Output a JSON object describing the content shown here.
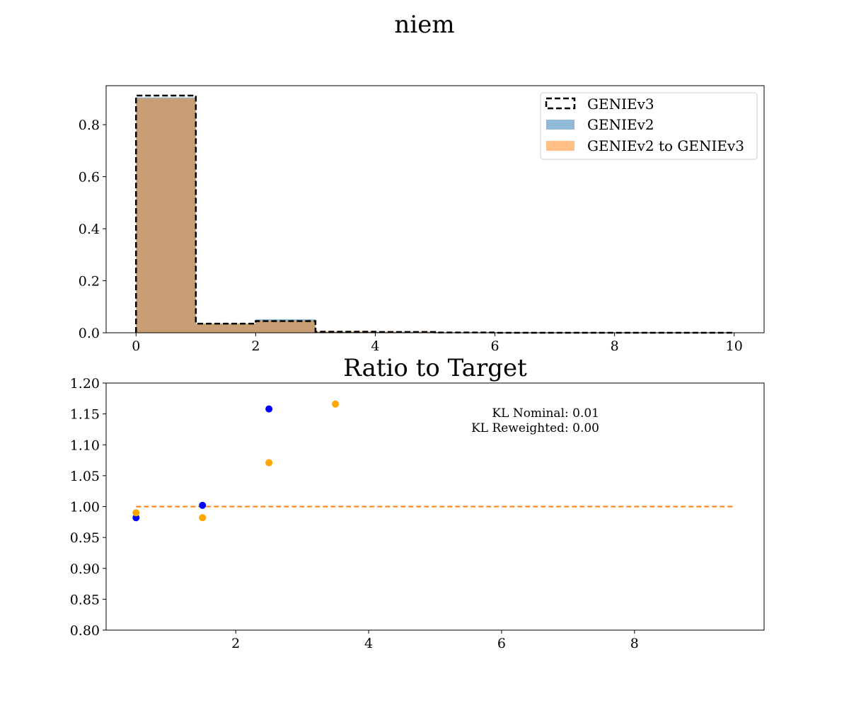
{
  "figure": {
    "title": "niem"
  },
  "chart_data": [
    {
      "type": "bar",
      "title": "",
      "xlabel": "",
      "ylabel": "",
      "xlim": [
        -0.5,
        10.5
      ],
      "ylim": [
        0.0,
        0.95
      ],
      "xticks": [
        0,
        2,
        4,
        6,
        8,
        10
      ],
      "yticks": [
        0.0,
        0.2,
        0.4,
        0.6,
        0.8
      ],
      "bin_edges": [
        0,
        1,
        2,
        3,
        4,
        5,
        6,
        7,
        8,
        9,
        10
      ],
      "legend_position": "top-right",
      "series": [
        {
          "name": "GENIEv2",
          "style": "filled",
          "color": "#1f77b4",
          "opacity": 0.5,
          "values": [
            0.905,
            0.035,
            0.052,
            0.004,
            0.004,
            0.001,
            0.0,
            0.0,
            0.0,
            0.0
          ]
        },
        {
          "name": "GENIEv2 to GENIEv3",
          "style": "filled",
          "color": "#ff7f0e",
          "opacity": 0.5,
          "values": [
            0.902,
            0.035,
            0.047,
            0.005,
            0.004,
            0.001,
            0.0,
            0.0,
            0.0,
            0.0
          ]
        },
        {
          "name": "GENIEv3",
          "style": "step-dashed",
          "color": "#000000",
          "values": [
            0.912,
            0.035,
            0.045,
            0.004,
            0.003,
            0.001,
            0.0,
            0.0,
            0.0,
            0.0
          ]
        }
      ]
    },
    {
      "type": "scatter",
      "title": "Ratio to Target",
      "xlabel": "",
      "ylabel": "",
      "xlim": [
        0.05,
        9.95
      ],
      "ylim": [
        0.8,
        1.2
      ],
      "xticks": [
        2,
        4,
        6,
        8
      ],
      "yticks": [
        0.8,
        0.85,
        0.9,
        0.95,
        1.0,
        1.05,
        1.1,
        1.15,
        1.2
      ],
      "reference_line": {
        "y": 1.0,
        "x": [
          0.5,
          9.5
        ],
        "color": "#ff7f0e",
        "style": "dashed"
      },
      "series": [
        {
          "color": "#0000ff",
          "x": [
            0.5,
            1.5,
            2.5
          ],
          "y": [
            0.982,
            1.002,
            1.158
          ]
        },
        {
          "color": "#ffa500",
          "x": [
            0.5,
            1.5,
            2.5,
            3.5
          ],
          "y": [
            0.99,
            0.982,
            1.071,
            1.166
          ]
        }
      ],
      "annotations": [
        "KL Nominal: 0.01",
        "KL Reweighted: 0.00"
      ]
    }
  ]
}
